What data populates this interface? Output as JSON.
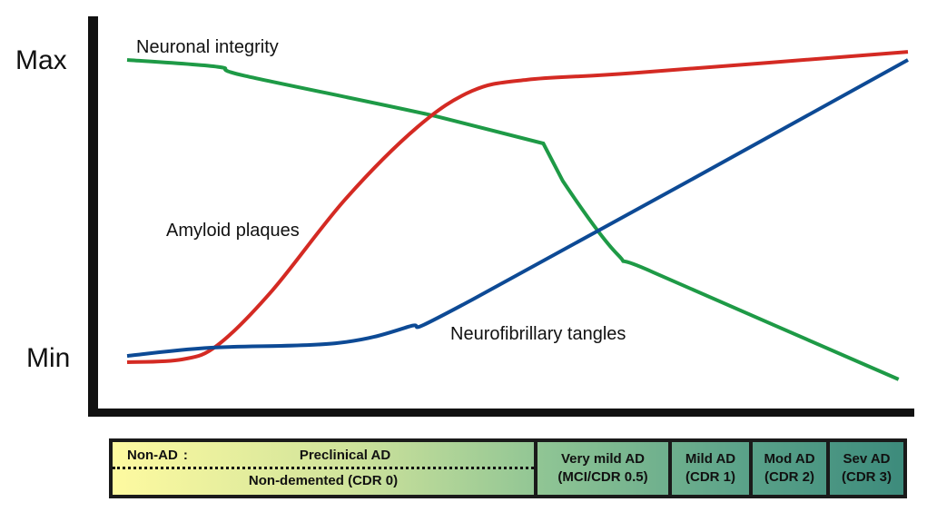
{
  "chart_data": {
    "type": "line",
    "y_ticks": [
      "Max",
      "Min"
    ],
    "ylim": [
      0,
      100
    ],
    "xlim": [
      0,
      100
    ],
    "series": [
      {
        "name": "Neuronal integrity",
        "color": "#1e9a46",
        "x": [
          0,
          11.6,
          15.1,
          39.5,
          53.3,
          55.8,
          62.8,
          67.4,
          98.8
        ],
        "y": [
          100.3,
          98,
          95,
          81.6,
          72.5,
          60,
          35.6,
          29.6,
          -6
        ]
      },
      {
        "name": "Amyloid plaques",
        "color": "#d42a23",
        "x": [
          0,
          7,
          11.6,
          18.6,
          27.9,
          37.2,
          44.2,
          51.2,
          65.1,
          100
        ],
        "y": [
          -0.3,
          0.6,
          5.4,
          23.6,
          53.8,
          78,
          90,
          93.7,
          96,
          103
        ]
      },
      {
        "name": "Neurofibrillary tangles",
        "color": "#0d4a95",
        "x": [
          0,
          10.5,
          26.7,
          36,
          44.2,
          100
        ],
        "y": [
          1.8,
          4.5,
          6,
          11.5,
          20.5,
          100.3
        ]
      }
    ],
    "stages": {
      "non_ad": "Non-AD",
      "preclinical": "Preclinical AD",
      "non_demented": "Non-demented (CDR 0)",
      "cells": [
        [
          "Very mild AD",
          "(MCI/CDR 0.5)"
        ],
        [
          "Mild AD",
          "(CDR 1)"
        ],
        [
          "Mod AD",
          "(CDR 2)"
        ],
        [
          "Sev AD",
          "(CDR 3)"
        ]
      ]
    }
  }
}
